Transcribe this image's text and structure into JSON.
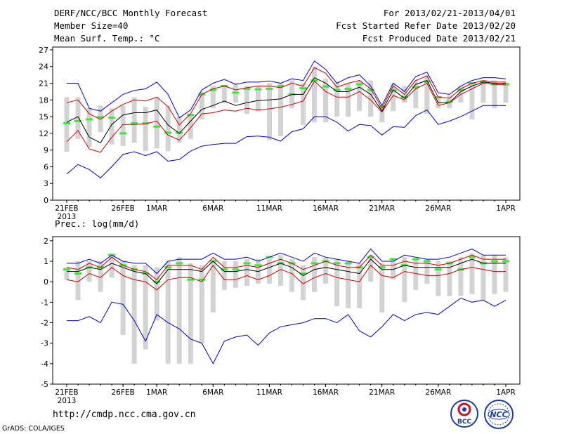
{
  "header": {
    "title": "DERF/NCC/BCC Monthly Forecast",
    "member_size": "Member Size=40",
    "variable": "Mean Surf. Temp.: °C",
    "period": "For 2013/02/21-2013/04/01",
    "start_date": "Fcst Started Refer Date 2013/02/20",
    "produced_date": "Fcst Produced Date 2013/02/21"
  },
  "footer": {
    "url": "http://cmdp.ncc.cma.gov.cn",
    "credit": "GrADS: COLA/IGES",
    "logo_bcc": "BCC",
    "logo_ncc": "NCC"
  },
  "colors": {
    "max_min": "#0000cc",
    "spread": "#cc0000",
    "mean": "#000000",
    "box": "#d3d3d3",
    "member": "#33ee33"
  },
  "chart_data": [
    {
      "type": "line",
      "title": "Mean Surf. Temp.: °C",
      "n_days": 40,
      "x_ticks": [
        {
          "day": 0,
          "label": "21FEB",
          "sub": "2013"
        },
        {
          "day": 5,
          "label": "26FEB"
        },
        {
          "day": 8,
          "label": "1MAR"
        },
        {
          "day": 13,
          "label": "6MAR"
        },
        {
          "day": 18,
          "label": "11MAR"
        },
        {
          "day": 23,
          "label": "16MAR"
        },
        {
          "day": 28,
          "label": "21MAR"
        },
        {
          "day": 33,
          "label": "26MAR"
        },
        {
          "day": 39,
          "label": "1APR"
        }
      ],
      "ylim": [
        0,
        27.5
      ],
      "yticks": [
        0,
        3,
        6,
        9,
        12,
        15,
        18,
        21,
        24,
        27
      ],
      "series": [
        {
          "name": "max",
          "color": "#0000cc",
          "values": [
            21,
            21,
            16.5,
            16,
            17.5,
            19,
            19.7,
            20,
            21.2,
            19,
            14.8,
            16.2,
            19.8,
            21,
            21.7,
            20.8,
            21.2,
            21.2,
            21.4,
            21,
            21.8,
            21.5,
            25,
            23.5,
            21,
            22,
            22.5,
            20.5,
            17,
            21,
            19.5,
            22.2,
            23,
            19.3,
            19,
            20.5,
            21.5,
            22,
            22,
            21.8
          ]
        },
        {
          "name": "upper",
          "color": "#cc0000",
          "values": [
            17.5,
            18,
            15.5,
            14.5,
            16,
            17.2,
            18,
            17.8,
            18.5,
            16.8,
            13.5,
            15.5,
            19,
            20,
            20.5,
            19.8,
            20.2,
            20.5,
            20.5,
            20.2,
            21,
            20.5,
            23.8,
            22.8,
            20.3,
            21,
            21.5,
            20,
            16.5,
            20.5,
            19,
            21.5,
            22.3,
            18.5,
            18.3,
            20,
            21,
            21.5,
            21.2,
            21.2
          ]
        },
        {
          "name": "mean",
          "color": "#000000",
          "values": [
            14,
            15,
            11.3,
            10.3,
            13.6,
            15.3,
            15.7,
            15.7,
            16.2,
            13.5,
            12,
            14.2,
            16.3,
            17,
            17.8,
            17,
            17.5,
            17.9,
            18,
            18.2,
            19,
            19,
            22,
            21,
            19.5,
            19.5,
            20.3,
            19,
            16,
            19.8,
            18.3,
            20.8,
            21.5,
            17.5,
            17.5,
            19.5,
            20.5,
            21.2,
            21,
            21
          ]
        },
        {
          "name": "lower",
          "color": "#cc0000",
          "values": [
            10.5,
            12.5,
            9.2,
            8.6,
            11.3,
            13.6,
            13.6,
            13.7,
            14.2,
            11.7,
            10.8,
            13,
            15.5,
            15.7,
            16.2,
            16,
            16.5,
            16.2,
            16.4,
            16.7,
            17.2,
            17.8,
            21.4,
            19.5,
            18.5,
            18.5,
            19.5,
            18,
            15.8,
            18.8,
            18,
            20,
            21,
            17,
            17.5,
            19,
            20,
            21,
            20.8,
            20.7
          ]
        },
        {
          "name": "min",
          "color": "#0000cc",
          "values": [
            4.7,
            6.4,
            5.5,
            4,
            6,
            8.2,
            8.7,
            8,
            8.7,
            7,
            7.3,
            8.8,
            9.7,
            10,
            10.2,
            10.2,
            11.4,
            11.5,
            11.3,
            10.6,
            12.3,
            12.8,
            15,
            15,
            14,
            12.4,
            13.6,
            13.4,
            11.7,
            13.2,
            13.1,
            15.2,
            16.2,
            13.6,
            14.2,
            15,
            16,
            17,
            17,
            17
          ]
        }
      ],
      "boxes": {
        "low": [
          8.7,
          11,
          9.5,
          12.2,
          10,
          9.7,
          10.3,
          8.8,
          9.3,
          8.8,
          10.3,
          11,
          14.5,
          16.5,
          17.5,
          17.5,
          15.5,
          16,
          10.8,
          11.5,
          16.5,
          13.5,
          14,
          14,
          15,
          15,
          16,
          15,
          14,
          16,
          17.5,
          16.5,
          15.5,
          16.5,
          16.5,
          17.5,
          14.5,
          17.5,
          16.5,
          17.5
        ],
        "high": [
          18.5,
          18.5,
          16.5,
          17,
          16.5,
          17,
          18.5,
          16.8,
          18.5,
          17,
          15,
          15.5,
          19.5,
          20.5,
          20.5,
          21,
          20.5,
          20.5,
          21,
          21,
          21.5,
          21,
          24,
          21.8,
          21.2,
          21,
          21.5,
          21.5,
          17,
          21,
          20.5,
          21.5,
          22.5,
          18.5,
          18.8,
          20.5,
          21,
          21.5,
          21.5,
          21.2
        ],
        "member": [
          13.8,
          14.2,
          14.5,
          14.9,
          14.8,
          12,
          13.8,
          13.8,
          13.2,
          12.1,
          12.1,
          15.3,
          19,
          19.8,
          20.5,
          19.3,
          20,
          19.9,
          20,
          20.5,
          19,
          20.1,
          21.5,
          20.4,
          19.8,
          20,
          20.8,
          19.8,
          16.8,
          19.7,
          18.5,
          20.3,
          21.3,
          18.5,
          17.7,
          19.8,
          21,
          21.3,
          20.8,
          20.8
        ]
      }
    },
    {
      "type": "line",
      "title": "Prec.: log(mm/d)",
      "n_days": 40,
      "x_ticks": [
        {
          "day": 0,
          "label": "21FEB",
          "sub": "2013"
        },
        {
          "day": 5,
          "label": "26FEB"
        },
        {
          "day": 8,
          "label": "1MAR"
        },
        {
          "day": 13,
          "label": "6MAR"
        },
        {
          "day": 18,
          "label": "11MAR"
        },
        {
          "day": 23,
          "label": "16MAR"
        },
        {
          "day": 28,
          "label": "21MAR"
        },
        {
          "day": 33,
          "label": "26MAR"
        },
        {
          "day": 39,
          "label": "1APR"
        }
      ],
      "ylim": [
        -5,
        2.2
      ],
      "yticks": [
        -5,
        -4,
        -3,
        -2,
        -1,
        0,
        1,
        2
      ],
      "series": [
        {
          "name": "max",
          "color": "#0000cc",
          "values": [
            0.9,
            0.9,
            1.1,
            0.9,
            1.3,
            1,
            0.9,
            0.9,
            0.4,
            1,
            1.1,
            1.1,
            1.1,
            1.4,
            1.1,
            1.1,
            1.2,
            1,
            1.2,
            1.4,
            1.2,
            1,
            1.4,
            1.2,
            1.1,
            1,
            0.9,
            1.6,
            1,
            1,
            1.3,
            1.2,
            1.1,
            1.1,
            1.2,
            1.4,
            1.6,
            1.3,
            1.3,
            1.3
          ]
        },
        {
          "name": "upper",
          "color": "#cc0000",
          "values": [
            0.7,
            0.6,
            0.9,
            0.7,
            1.2,
            0.8,
            0.6,
            0.5,
            0.1,
            0.8,
            0.8,
            0.8,
            0.6,
            1.2,
            0.7,
            0.7,
            0.8,
            0.7,
            0.9,
            1.1,
            0.9,
            0.6,
            0.8,
            1,
            0.8,
            0.7,
            0.7,
            1.3,
            0.8,
            0.8,
            1,
            0.9,
            0.9,
            0.8,
            0.9,
            1.1,
            1.3,
            1.1,
            1.1,
            1.1
          ]
        },
        {
          "name": "mean",
          "color": "#000000",
          "values": [
            0.5,
            0.5,
            0.7,
            0.6,
            0.9,
            0.7,
            0.5,
            0.4,
            -0.1,
            0.6,
            0.6,
            0.6,
            0.5,
            1,
            0.5,
            0.5,
            0.6,
            0.5,
            0.7,
            0.9,
            0.7,
            0.3,
            0.6,
            0.7,
            0.6,
            0.5,
            0.4,
            1.1,
            0.6,
            0.6,
            0.8,
            0.7,
            0.7,
            0.7,
            0.7,
            0.9,
            1.1,
            0.9,
            0.9,
            0.9
          ]
        },
        {
          "name": "lower",
          "color": "#cc0000",
          "values": [
            0.1,
            0,
            0.4,
            0.2,
            0.7,
            0.3,
            0.1,
            0,
            -0.4,
            0.1,
            0.2,
            0.2,
            0,
            0.8,
            0.1,
            0.1,
            0.3,
            0.1,
            0.3,
            0.6,
            0.4,
            -0.1,
            0.2,
            0.4,
            0.2,
            0.1,
            0,
            0.8,
            0.3,
            0.2,
            0.5,
            0.4,
            0.3,
            0.3,
            0.4,
            0.6,
            0.7,
            0.6,
            0.5,
            0.5
          ]
        },
        {
          "name": "min",
          "color": "#0000cc",
          "values": [
            -1.9,
            -1.9,
            -1.7,
            -2,
            -1,
            -1.1,
            -1.9,
            -2.9,
            -1.6,
            -2,
            -2.3,
            -2.8,
            -3,
            -4,
            -2.9,
            -2.7,
            -2.6,
            -3.1,
            -2.5,
            -2.2,
            -2.1,
            -2,
            -1.8,
            -1.8,
            -2,
            -1.6,
            -2.4,
            -2.7,
            -2.2,
            -1.6,
            -1.9,
            -1.6,
            -1.5,
            -1.6,
            -1.2,
            -0.8,
            -1,
            -0.9,
            -1.2,
            -0.9
          ]
        }
      ],
      "boxes": {
        "low": [
          0.1,
          -0.9,
          0,
          -0.5,
          0.2,
          -2.6,
          -4,
          -3.3,
          -1.9,
          -4,
          -4,
          -4,
          -3,
          -1.5,
          -0.4,
          -0.3,
          -0.2,
          -0.1,
          -0.1,
          -0.2,
          -0.5,
          -0.9,
          -0.5,
          -0.1,
          -1.2,
          -1.3,
          -1.3,
          0,
          -1.5,
          0.1,
          -1,
          -0.4,
          -0.1,
          -0.7,
          -0.7,
          -0.7,
          -0.6,
          -0.9,
          -0.6,
          -0.5
        ],
        "high": [
          0.7,
          1,
          1,
          1,
          1.4,
          1,
          0.8,
          0.8,
          0.7,
          1,
          1.2,
          0.9,
          0.8,
          1.1,
          1,
          1,
          1.1,
          1.1,
          1.1,
          1.3,
          1.1,
          0.8,
          1.2,
          1.2,
          1.1,
          1,
          0.9,
          1.3,
          0.9,
          1,
          1.2,
          1.1,
          1.1,
          1,
          1,
          1.2,
          1.4,
          1.3,
          1.3,
          1.2
        ],
        "member": [
          0.6,
          0.4,
          0.7,
          0.7,
          1.3,
          0.8,
          0.6,
          0.4,
          0,
          0.7,
          0.9,
          0.1,
          0.1,
          1,
          0.6,
          0.6,
          0.9,
          0.8,
          1.2,
          0.9,
          0.9,
          0.4,
          0.9,
          1,
          0.9,
          0.9,
          0.7,
          1.2,
          0.7,
          1.1,
          0.8,
          1.1,
          1,
          0.6,
          0.9,
          0.6,
          1.2,
          0.9,
          1,
          1
        ]
      }
    }
  ]
}
